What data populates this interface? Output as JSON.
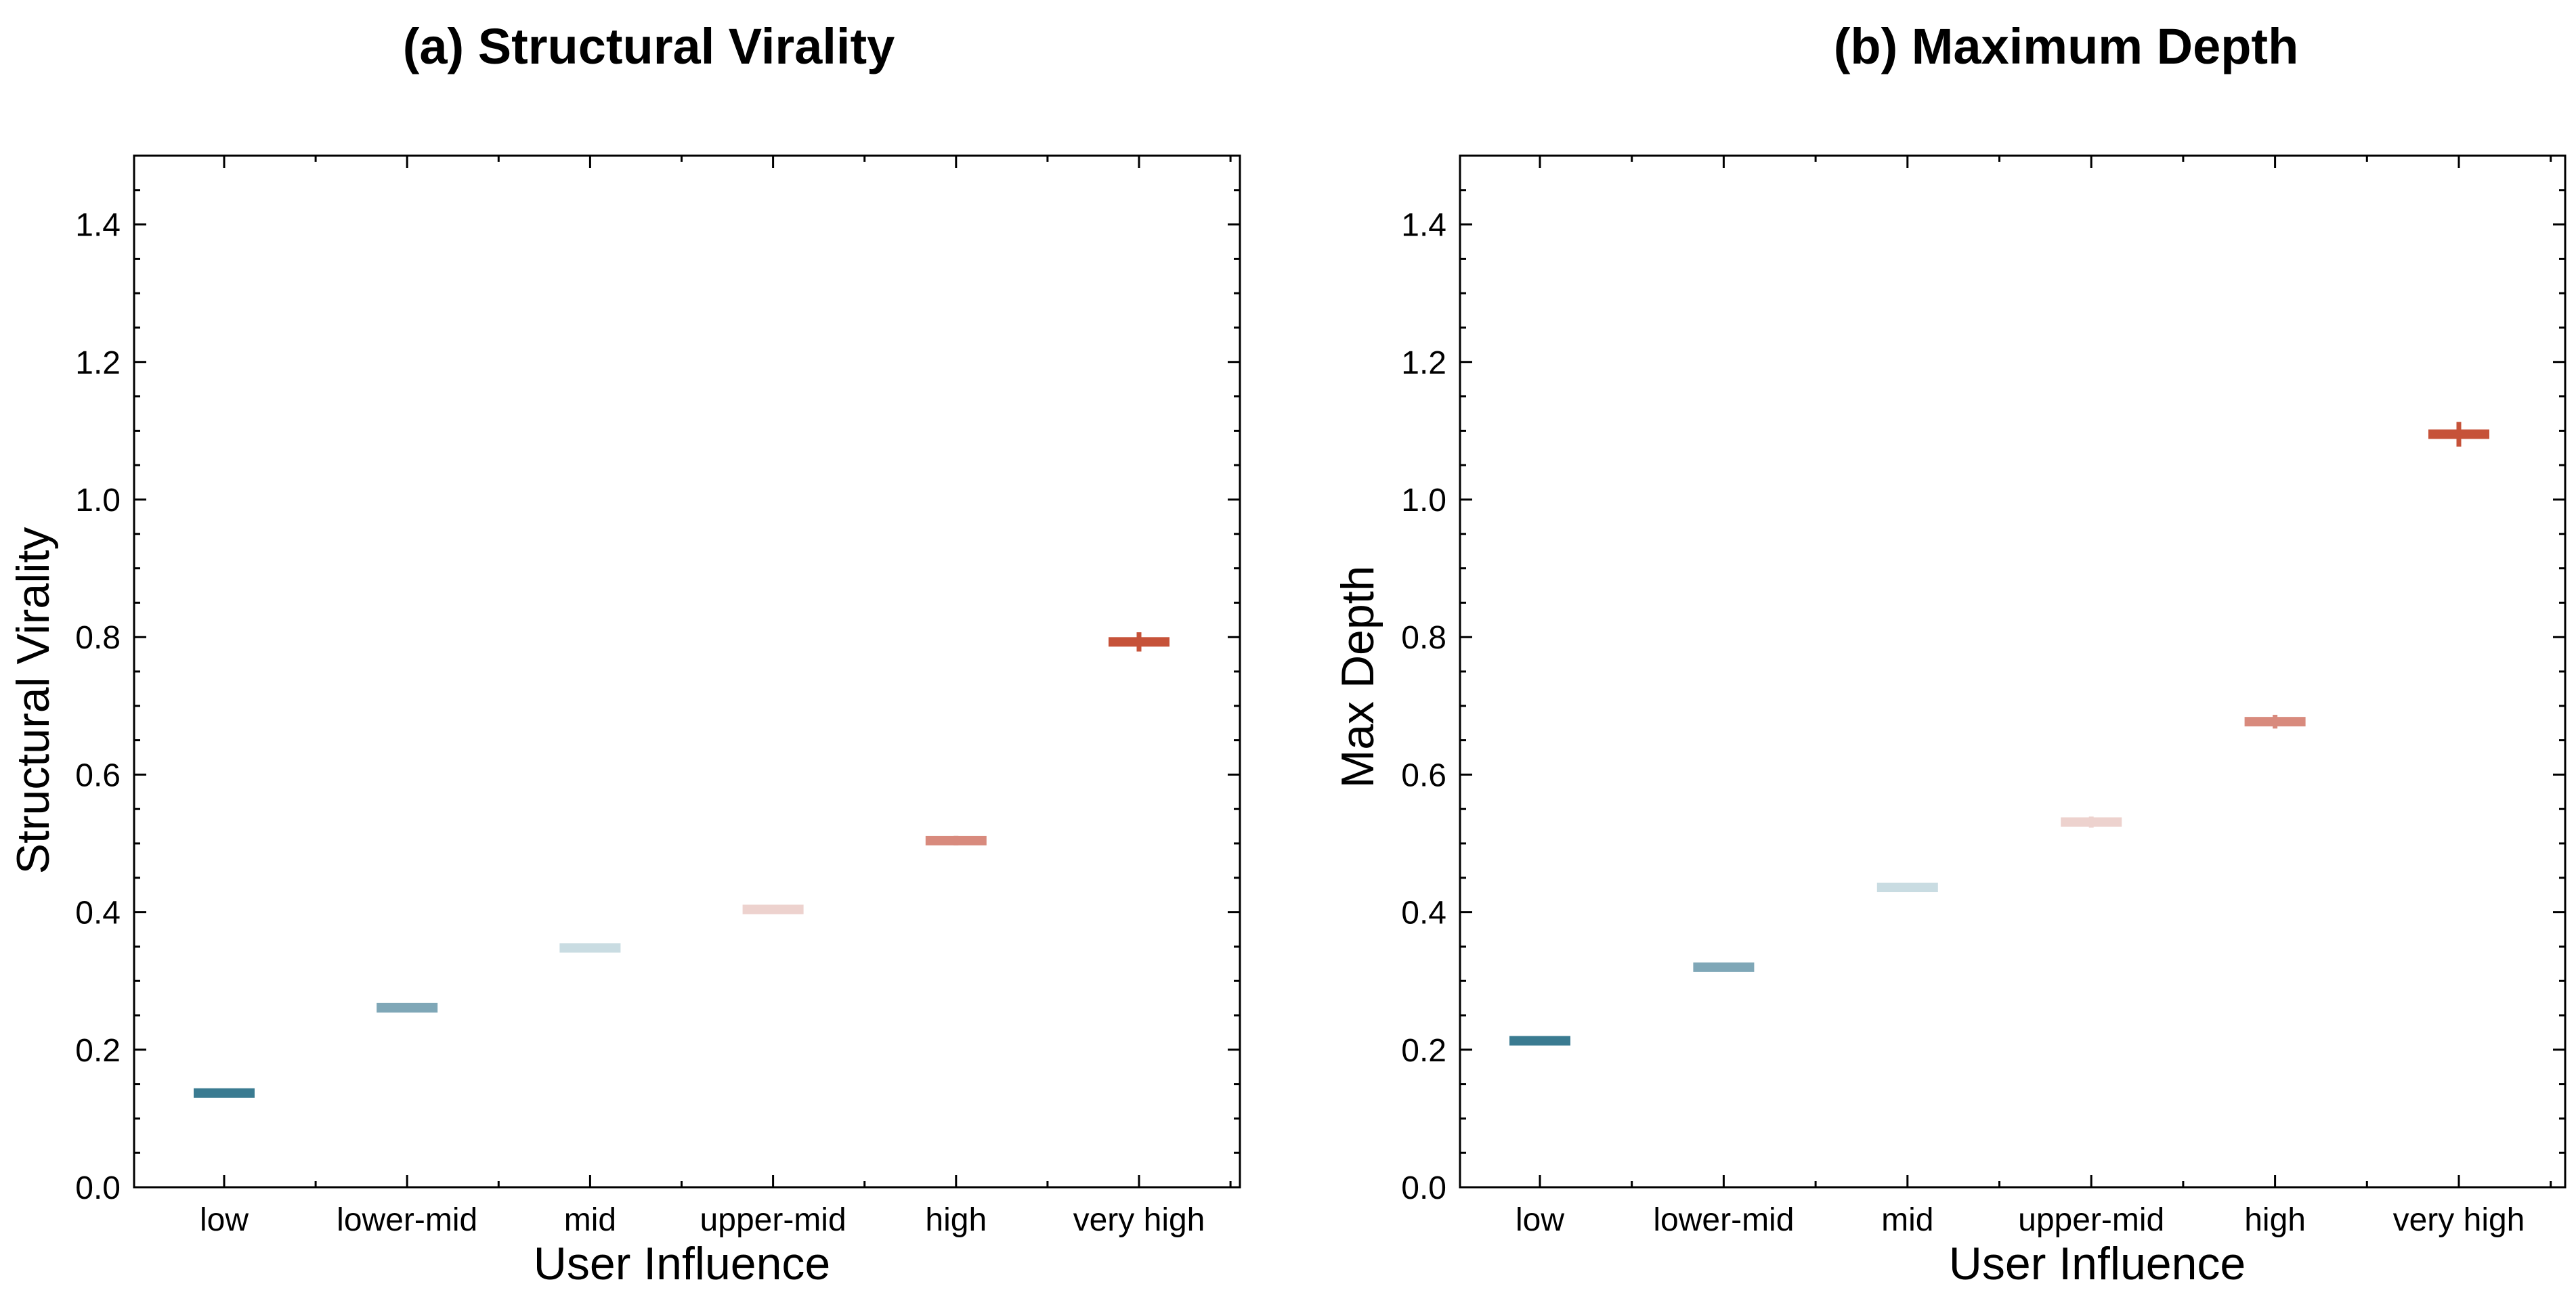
{
  "chart_data": [
    {
      "type": "scatter",
      "title": "(a) Structural Virality",
      "xlabel": "User Influence",
      "ylabel": "Structural Virality",
      "categories": [
        "low",
        "lower-mid",
        "mid",
        "upper-mid",
        "high",
        "very high"
      ],
      "values": [
        0.137,
        0.261,
        0.348,
        0.404,
        0.504,
        0.793
      ],
      "errors": [
        0.005,
        0.004,
        0.004,
        0.005,
        0.007,
        0.014
      ],
      "colors": [
        "#3a7b91",
        "#7fa7b7",
        "#c9dce2",
        "#edd2ce",
        "#d88a7d",
        "#c65239"
      ],
      "ylim": [
        0.0,
        1.5
      ],
      "yticks": [
        "0.0",
        "0.2",
        "0.4",
        "0.6",
        "0.8",
        "1.0",
        "1.2",
        "1.4"
      ],
      "grid": false
    },
    {
      "type": "scatter",
      "title": "(b) Maximum Depth",
      "xlabel": "User Influence",
      "ylabel": "Max Depth",
      "categories": [
        "low",
        "lower-mid",
        "mid",
        "upper-mid",
        "high",
        "very high"
      ],
      "values": [
        0.213,
        0.32,
        0.436,
        0.531,
        0.677,
        1.095
      ],
      "errors": [
        0.003,
        0.006,
        0.006,
        0.008,
        0.01,
        0.018
      ],
      "colors": [
        "#3a7b91",
        "#7fa7b7",
        "#c9dce2",
        "#edd2ce",
        "#d88a7d",
        "#c65239"
      ],
      "ylim": [
        0.0,
        1.5
      ],
      "yticks": [
        "0.0",
        "0.2",
        "0.4",
        "0.6",
        "0.8",
        "1.0",
        "1.2",
        "1.4"
      ],
      "grid": false
    }
  ]
}
